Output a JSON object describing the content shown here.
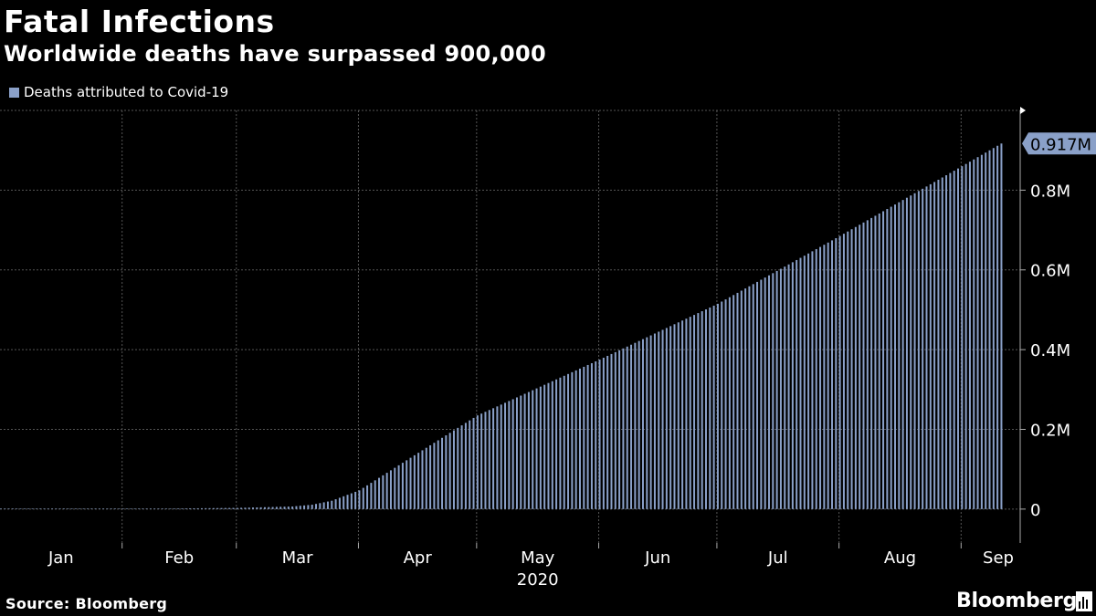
{
  "chart_data": {
    "type": "bar",
    "title": "Fatal Infections",
    "subtitle": "Worldwide deaths have surpassed 900,000",
    "series": [
      {
        "name": "Deaths attributed to Covid-19"
      }
    ],
    "x_tick_labels": [
      "Jan",
      "Feb",
      "Mar",
      "Apr",
      "May",
      "Jun",
      "Jul",
      "Aug",
      "Sep"
    ],
    "x_year_label": "2020",
    "y_tick_labels": [
      "0",
      "0.2M",
      "0.4M",
      "0.6M",
      "0.8M"
    ],
    "y_ticks": [
      0,
      200000,
      400000,
      600000,
      800000
    ],
    "ylim": [
      -85000,
      1000000
    ],
    "last_value_label": "0.917M",
    "anchor_points": [
      {
        "date": "2020-01-01",
        "value": 0
      },
      {
        "date": "2020-02-01",
        "value": 250
      },
      {
        "date": "2020-03-01",
        "value": 3000
      },
      {
        "date": "2020-03-15",
        "value": 6500
      },
      {
        "date": "2020-03-20",
        "value": 11000
      },
      {
        "date": "2020-03-25",
        "value": 21000
      },
      {
        "date": "2020-04-01",
        "value": 47000
      },
      {
        "date": "2020-04-15",
        "value": 135000
      },
      {
        "date": "2020-05-01",
        "value": 235000
      },
      {
        "date": "2020-06-01",
        "value": 375000
      },
      {
        "date": "2020-07-01",
        "value": 515000
      },
      {
        "date": "2020-08-01",
        "value": 685000
      },
      {
        "date": "2020-09-01",
        "value": 860000
      },
      {
        "date": "2020-09-11",
        "value": 917000
      }
    ],
    "grid": true,
    "legend_position": "top-left",
    "colors": {
      "bar": "#8aa0c8",
      "background": "#000000",
      "grid": "#555555",
      "text": "#ffffff",
      "label_bg": "#8aa0c8",
      "label_text": "#000000"
    }
  },
  "header": {
    "title": "Fatal Infections",
    "subtitle": "Worldwide deaths have surpassed 900,000"
  },
  "legend": {
    "label": "Deaths attributed to Covid-19"
  },
  "footer": {
    "source": "Source: Bloomberg",
    "brand": "Bloomberg"
  }
}
